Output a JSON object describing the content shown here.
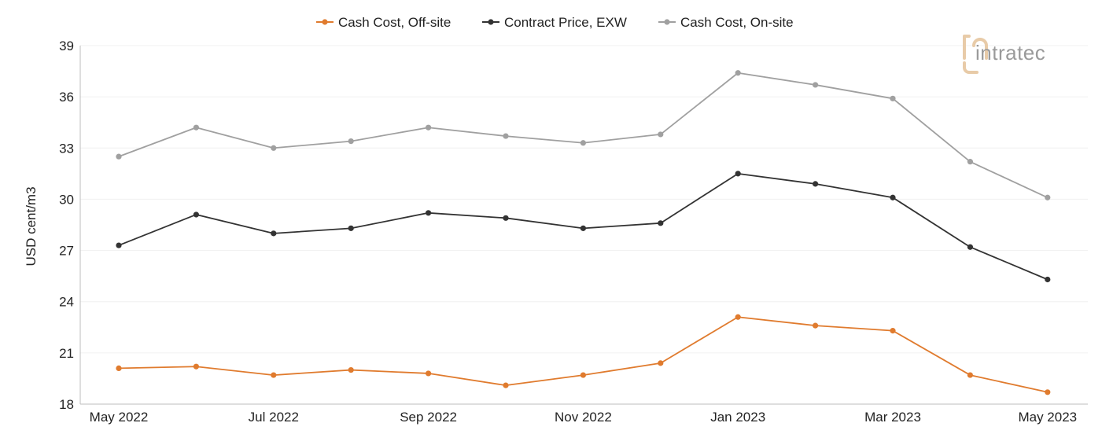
{
  "logo": {
    "text": "intratec"
  },
  "chart_data": {
    "type": "line",
    "ylabel": "USD cent/m3",
    "xlabel": "",
    "ylim": [
      18,
      39
    ],
    "yticks": [
      18,
      21,
      24,
      27,
      30,
      33,
      36,
      39
    ],
    "x": [
      "May 2022",
      "Jun 2022",
      "Jul 2022",
      "Aug 2022",
      "Sep 2022",
      "Oct 2022",
      "Nov 2022",
      "Dec 2022",
      "Jan 2023",
      "Feb 2023",
      "Mar 2023",
      "Apr 2023",
      "May 2023"
    ],
    "xtick_labels": [
      "May 2022",
      "",
      "Jul 2022",
      "",
      "Sep 2022",
      "",
      "Nov 2022",
      "",
      "Jan 2023",
      "",
      "Mar 2023",
      "",
      "May 2023"
    ],
    "grid": true,
    "legend_position": "top",
    "series": [
      {
        "name": "Cash Cost, Off-site",
        "color": "#e07b2e",
        "values": [
          20.1,
          20.2,
          19.7,
          20.0,
          19.8,
          19.1,
          19.7,
          20.4,
          23.1,
          22.6,
          22.3,
          19.7,
          18.7
        ]
      },
      {
        "name": "Contract Price, EXW",
        "color": "#333333",
        "values": [
          27.3,
          29.1,
          28.0,
          28.3,
          29.2,
          28.9,
          28.3,
          28.6,
          31.5,
          30.9,
          30.1,
          27.2,
          25.3
        ]
      },
      {
        "name": "Cash Cost, On-site",
        "color": "#a0a0a0",
        "values": [
          32.5,
          34.2,
          33.0,
          33.4,
          34.2,
          33.7,
          33.3,
          33.8,
          37.4,
          36.7,
          35.9,
          32.2,
          30.1
        ]
      }
    ]
  }
}
